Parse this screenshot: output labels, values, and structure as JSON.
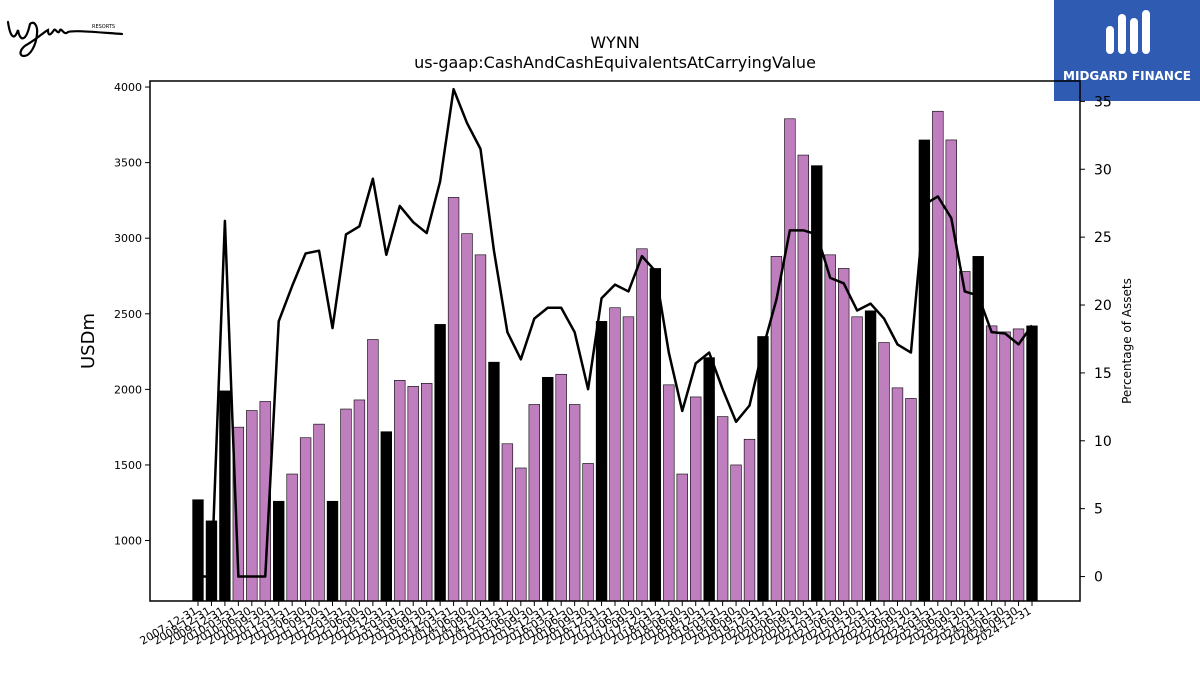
{
  "title": "WYNN",
  "subtitle": "us-gaap:CashAndCashEquivalentsAtCarryingValue",
  "logo_left": {
    "brand": "Wynn",
    "tagline": "RESORTS"
  },
  "logo_right": {
    "name": "MIDGARD FINANCE"
  },
  "colors": {
    "bar_default": "#bf7fbf",
    "bar_highlight": "#000000",
    "line": "#000000"
  },
  "chart_data": {
    "type": "bar",
    "xlabel": "",
    "ylabel": "USDm",
    "y2label": "Percentage of Assets",
    "ylim": [
      600,
      4040
    ],
    "y2lim": [
      -1.8,
      36.5
    ],
    "yticks": [
      1000,
      1500,
      2000,
      2500,
      3000,
      3500,
      4000
    ],
    "y2ticks": [
      0,
      5,
      10,
      15,
      20,
      25,
      30,
      35
    ],
    "categories": [
      "2007-12-31",
      "2008-12-31",
      "2009-12-31",
      "2010-03-31",
      "2010-06-30",
      "2010-09-30",
      "2010-12-31",
      "2011-03-31",
      "2011-06-30",
      "2011-09-30",
      "2011-12-31",
      "2012-03-31",
      "2012-06-30",
      "2012-09-30",
      "2012-12-31",
      "2013-03-31",
      "2013-06-30",
      "2013-09-30",
      "2013-12-31",
      "2014-03-31",
      "2014-06-30",
      "2014-09-30",
      "2014-12-31",
      "2015-03-31",
      "2015-06-30",
      "2015-09-30",
      "2015-12-31",
      "2016-03-31",
      "2016-06-30",
      "2016-09-30",
      "2016-12-31",
      "2017-03-31",
      "2017-06-30",
      "2017-09-30",
      "2017-12-31",
      "2018-03-31",
      "2018-06-30",
      "2018-09-30",
      "2018-12-31",
      "2019-03-31",
      "2019-06-30",
      "2019-09-30",
      "2019-12-31",
      "2020-03-31",
      "2020-06-30",
      "2020-09-30",
      "2020-12-31",
      "2021-03-31",
      "2021-06-30",
      "2021-09-30",
      "2021-12-31",
      "2022-03-31",
      "2022-06-30",
      "2022-09-30",
      "2022-12-31",
      "2023-03-31",
      "2023-06-30",
      "2023-09-30",
      "2023-12-31",
      "2024-03-31",
      "2024-06-30",
      "2024-09-30",
      "2024-12-31"
    ],
    "series": [
      {
        "type": "bar",
        "values": [
          1270,
          1130,
          1990,
          1750,
          1860,
          1920,
          1260,
          1440,
          1680,
          1770,
          1260,
          1870,
          1930,
          2330,
          1720,
          2060,
          2020,
          2040,
          2430,
          3270,
          3030,
          2890,
          2180,
          1640,
          1480,
          1900,
          2080,
          2100,
          1900,
          1510,
          2450,
          2540,
          2480,
          2930,
          2800,
          2030,
          1440,
          1950,
          2210,
          1820,
          1500,
          1670,
          2350,
          2880,
          3790,
          3550,
          3480,
          2890,
          2800,
          2480,
          2520,
          2310,
          2010,
          1940,
          3650,
          3840,
          3650,
          2780,
          2880,
          2420,
          2380,
          2400,
          2420
        ],
        "highlight": [
          true,
          true,
          true,
          false,
          false,
          false,
          true,
          false,
          false,
          false,
          true,
          false,
          false,
          false,
          true,
          false,
          false,
          false,
          true,
          false,
          false,
          false,
          true,
          false,
          false,
          false,
          true,
          false,
          false,
          false,
          true,
          false,
          false,
          false,
          true,
          false,
          false,
          false,
          true,
          false,
          false,
          false,
          true,
          false,
          false,
          false,
          true,
          false,
          false,
          false,
          true,
          false,
          false,
          false,
          true,
          false,
          false,
          false,
          true,
          false,
          false,
          false,
          true
        ]
      },
      {
        "type": "line",
        "axis": "y2",
        "values": [
          0,
          0,
          26.2,
          0,
          0,
          0,
          18.8,
          21.4,
          23.8,
          24,
          18.3,
          25.2,
          25.8,
          29.3,
          23.7,
          27.3,
          26.1,
          25.3,
          29.1,
          35.9,
          33.4,
          31.5,
          24,
          18,
          16,
          19,
          19.8,
          19.8,
          18,
          13.8,
          20.5,
          21.5,
          21,
          23.6,
          22.5,
          16.5,
          12.2,
          15.7,
          16.5,
          13.8,
          11.4,
          12.6,
          16.8,
          20.4,
          25.5,
          25.5,
          25.2,
          22,
          21.6,
          19.6,
          20.1,
          19,
          17.1,
          16.5,
          27.4,
          28,
          26.4,
          21,
          20.7,
          18,
          17.9,
          17.1,
          18.5
        ]
      }
    ]
  }
}
